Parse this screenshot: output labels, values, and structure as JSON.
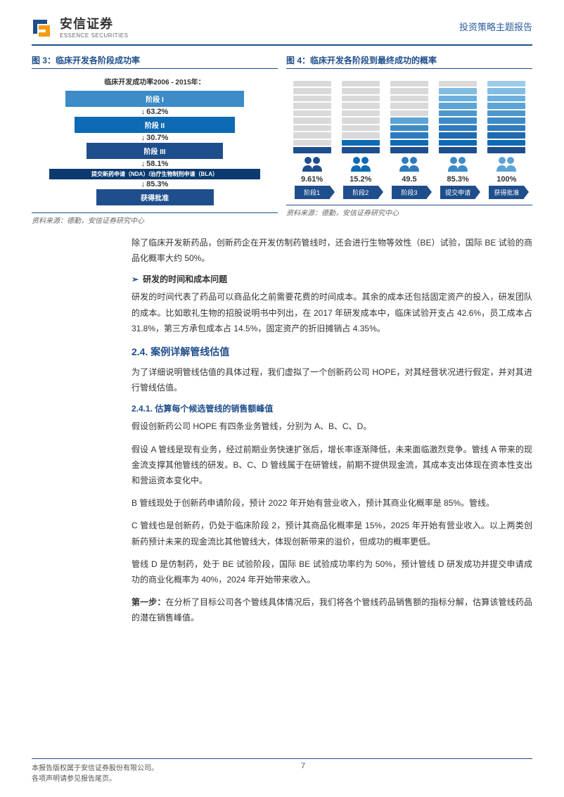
{
  "header": {
    "logo_cn": "安信证券",
    "logo_en": "ESSENCE SECURITIES",
    "report_type": "投资策略主题报告",
    "logo_colors": {
      "outer": "#1f4e8c",
      "inner": "#f39c12"
    }
  },
  "chart3": {
    "title_prefix": "图 3：",
    "title": "临床开发各阶段成功率",
    "subtitle": "临床开发成功率2006 - 2015年：",
    "stages": [
      {
        "label": "阶段 I",
        "width_pct": 76,
        "bg": "#3d8bc7",
        "arrow_pct": "63.2%"
      },
      {
        "label": "阶段 II",
        "width_pct": 68,
        "bg": "#0d6ab3",
        "arrow_pct": "30.7%"
      },
      {
        "label": "阶段 III",
        "width_pct": 58,
        "bg": "#1f4e8c",
        "arrow_pct": "58.1%"
      },
      {
        "label": "提交新药申请（NDA）/治疗生物制剂申请（BLA）",
        "width_pct": 90,
        "bg": "#0b3a6e",
        "arrow_pct": "85.3%"
      },
      {
        "label": "获得批准",
        "width_pct": 50,
        "bg": "#1f4e8c",
        "arrow_pct": ""
      }
    ],
    "source": "资料来源：德勤，安信证券研究中心"
  },
  "chart4": {
    "title_prefix": "图 4：",
    "title": "临床开发各阶段到最终成功的概率",
    "columns": [
      {
        "label": "阶段1",
        "pct": "9.61%",
        "filled": 1,
        "color_seq": [
          "#1f4e8c"
        ],
        "icon_color": "#1f4e8c"
      },
      {
        "label": "阶段2",
        "pct": "15.2%",
        "filled": 2,
        "color_seq": [
          "#1f4e8c",
          "#0d6ab3"
        ],
        "icon_color": "#0d6ab3"
      },
      {
        "label": "阶段3",
        "pct": "49.5",
        "filled": 5,
        "color_seq": [
          "#1f4e8c",
          "#0d6ab3",
          "#2e7bbf",
          "#3d8bc7",
          "#5ca3d6"
        ],
        "icon_color": "#2e7bbf"
      },
      {
        "label": "提交申请",
        "pct": "85.3%",
        "filled": 9,
        "color_seq": [
          "#1f4e8c",
          "#0d6ab3",
          "#1f6bb0",
          "#2e7bbf",
          "#3d8bc7",
          "#4d96cf",
          "#5ca3d6",
          "#6eb0dd",
          "#82bde3"
        ],
        "icon_color": "#3d8bc7"
      },
      {
        "label": "获得批准",
        "pct": "100%",
        "filled": 10,
        "color_seq": [
          "#1f4e8c",
          "#0d6ab3",
          "#1f6bb0",
          "#2e7bbf",
          "#3d8bc7",
          "#4d96cf",
          "#5ca3d6",
          "#6eb0dd",
          "#82bde3",
          "#9ccbe9"
        ],
        "icon_color": "#5ca3d6"
      }
    ],
    "total_blocks": 10,
    "empty_color": "#d9d9d9",
    "label_bg": "#1f4e8c",
    "source": "资料来源：德勤，安信证券研究中心"
  },
  "body": {
    "p1": "除了临床开发新药品，创新药企在开发仿制药管线时，还会进行生物等效性（BE）试验，国际 BE 试验的商品化概率大约 50%。",
    "sub1": "研发的时间和成本问题",
    "p2": "研发的时间代表了药品可以商品化之前需要花费的时间成本。其余的成本还包括固定资产的投入，研发团队的成本。比如歌礼生物的招股说明书中列出，在 2017 年研发成本中，临床试验开支占 42.6%，员工成本占 31.8%，第三方承包成本占 14.5%，固定资产的折旧摊销占 4.35%。",
    "sec24": "2.4. 案例详解管线估值",
    "p3": "为了详细说明管线估值的具体过程，我们虚拟了一个创新药公司 HOPE，对其经营状况进行假定，并对其进行管线估值。",
    "sec241": "2.4.1. 估算每个候选管线的销售额峰值",
    "p4": "假设创新药公司 HOPE 有四条业务管线，分别为 A、B、C、D。",
    "p5": "假设 A 管线是现有业务，经过前期业务快速扩张后，增长率逐渐降低，未来面临激烈竞争。管线 A 带来的现金流支撑其他管线的研发。B、C、D 管线属于在研管线，前期不提供现金流，其成本支出体现在资本性支出和营运资本变化中。",
    "p6": "B 管线现处于创新药申请阶段，预计 2022 年开始有营业收入，预计其商业化概率是 85%。管线。",
    "p7": "C 管线也是创新药，仍处于临床阶段 2，预计其商品化概率是 15%，2025 年开始有营业收入。以上两类创新药预计未来的现金流比其他管线大，体现创新带来的溢价，但成功的概率更低。",
    "p8": "管线 D 是仿制药，处于 BE 试验阶段，国际 BE 试验成功率约为 50%，预计管线 D 研发成功并提交申请成功的商业化概率为 40%，2024 年开始带来收入。",
    "step1_label": "第一步：",
    "p9": "在分析了目标公司各个管线具体情况后，我们将各个管线药品销售额的指标分解，估算该管线药品的潜在销售峰值。"
  },
  "footer": {
    "line1": "本报告版权属于安信证券股份有限公司。",
    "line2": "各项声明请参见报告尾页。",
    "page": "7"
  }
}
